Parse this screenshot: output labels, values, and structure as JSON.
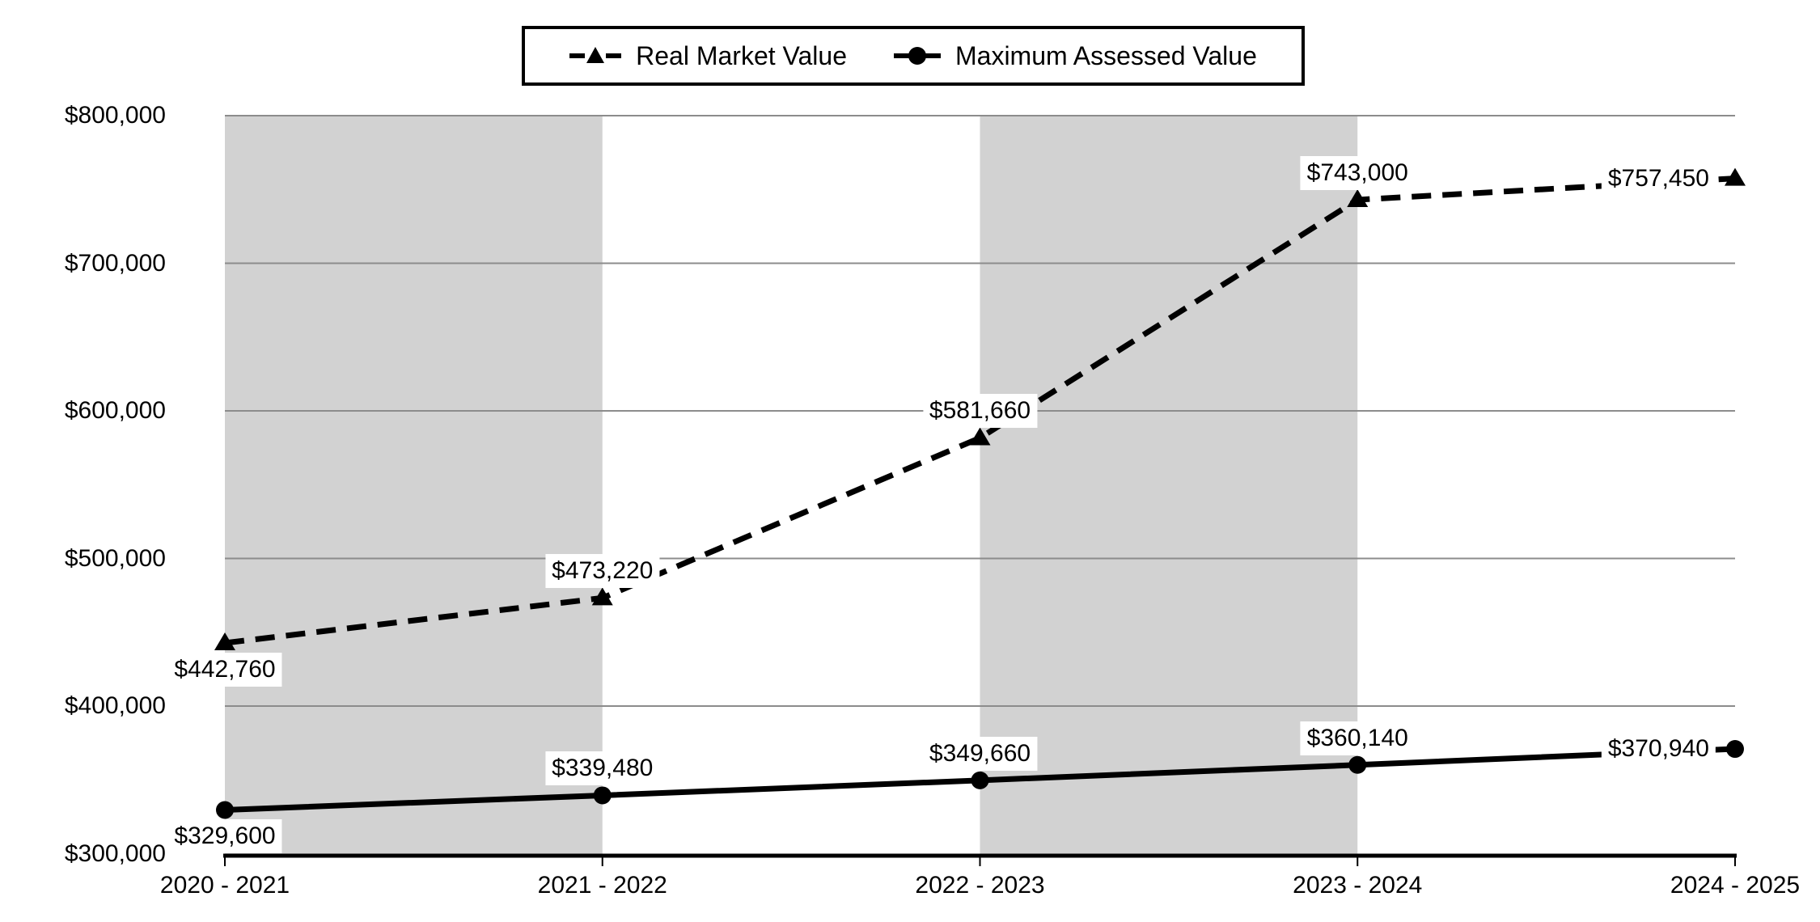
{
  "chart_data": {
    "type": "line",
    "title": "",
    "xlabel": "",
    "ylabel": "",
    "categories": [
      "2020 - 2021",
      "2021 - 2022",
      "2022 - 2023",
      "2023 - 2024",
      "2024 - 2025"
    ],
    "series": [
      {
        "name": "Real Market Value",
        "line_style": "dashed",
        "marker": "triangle",
        "values": [
          442760,
          473220,
          581660,
          743000,
          757450
        ],
        "labels": [
          "$442,760",
          "$473,220",
          "$581,660",
          "$743,000",
          "$757,450"
        ],
        "label_placement": [
          "below",
          "above",
          "above",
          "above",
          "left"
        ]
      },
      {
        "name": "Maximum Assessed Value",
        "line_style": "solid",
        "marker": "circle",
        "values": [
          329600,
          339480,
          349660,
          360140,
          370940
        ],
        "labels": [
          "$329,600",
          "$339,480",
          "$349,660",
          "$360,140",
          "$370,940"
        ],
        "label_placement": [
          "below",
          "above",
          "above",
          "above",
          "left"
        ]
      }
    ],
    "ylim": [
      300000,
      800000
    ],
    "y_ticks": [
      {
        "value": 300000,
        "label": "$300,000"
      },
      {
        "value": 400000,
        "label": "$400,000"
      },
      {
        "value": 500000,
        "label": "$500,000"
      },
      {
        "value": 600000,
        "label": "$600,000"
      },
      {
        "value": 700000,
        "label": "$700,000"
      },
      {
        "value": 800000,
        "label": "$800,000"
      }
    ],
    "shaded_bands": [
      [
        0,
        1
      ],
      [
        2,
        3
      ]
    ],
    "grid": true,
    "legend_position": "top-center",
    "colors": {
      "series": "#000000",
      "band": "#d2d2d2",
      "gridline": "#8c8c8c",
      "axis": "#000000",
      "label_bg": "#ffffff",
      "background": "#ffffff"
    }
  }
}
